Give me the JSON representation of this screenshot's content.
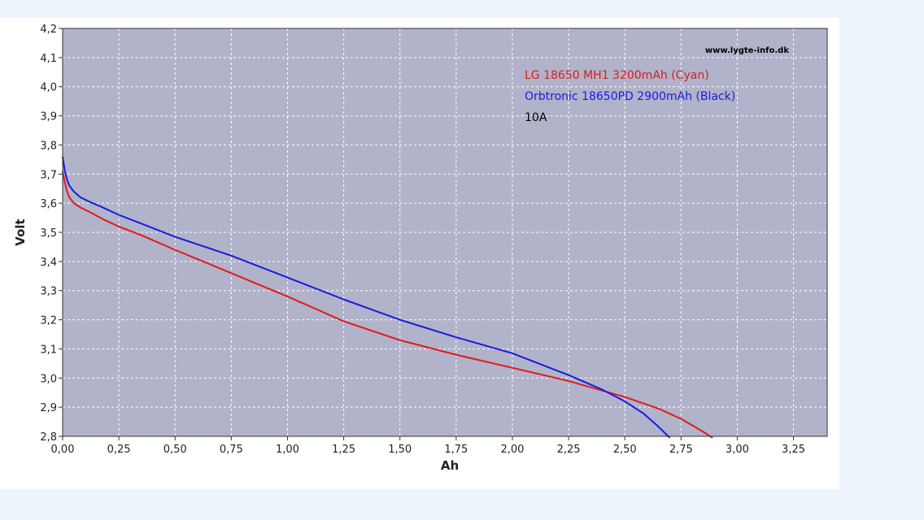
{
  "chart_data": {
    "type": "line",
    "xlabel": "Ah",
    "ylabel": "Volt",
    "xlim": [
      0,
      3.4
    ],
    "ylim": [
      2.8,
      4.2
    ],
    "x_ticks": [
      "0,00",
      "0,25",
      "0,50",
      "0,75",
      "1,00",
      "1,25",
      "1,50",
      "1,75",
      "2,00",
      "2,25",
      "2,50",
      "2,75",
      "3,00",
      "3,25"
    ],
    "y_ticks": [
      "2,8",
      "2,9",
      "3,0",
      "3,1",
      "3,2",
      "3,3",
      "3,4",
      "3,5",
      "3,6",
      "3,7",
      "3,8",
      "3,9",
      "4,0",
      "4,1",
      "4,2"
    ],
    "grid": true,
    "watermark": "www.lygte-info.dk",
    "legend_position": "top-right",
    "annotations": [
      {
        "text": "LG 18650 MH1 3200mAh (Cyan)",
        "color": "#e01a1a"
      },
      {
        "text": "Orbtronic 18650PD 2900mAh (Black)",
        "color": "#1a1ae0"
      },
      {
        "text": "10A",
        "color": "#000000"
      }
    ],
    "series": [
      {
        "color": "#e01a1a",
        "x": [
          0.0,
          0.01,
          0.02,
          0.03,
          0.05,
          0.08,
          0.12,
          0.18,
          0.25,
          0.35,
          0.5,
          0.75,
          1.0,
          1.25,
          1.5,
          1.75,
          2.0,
          2.25,
          2.5,
          2.65,
          2.75,
          2.85,
          2.89
        ],
        "y": [
          3.71,
          3.67,
          3.64,
          3.62,
          3.6,
          3.585,
          3.57,
          3.545,
          3.52,
          3.49,
          3.44,
          3.36,
          3.28,
          3.195,
          3.13,
          3.08,
          3.035,
          2.99,
          2.935,
          2.895,
          2.86,
          2.815,
          2.795
        ]
      },
      {
        "color": "#1a1ae0",
        "x": [
          0.0,
          0.01,
          0.02,
          0.03,
          0.05,
          0.08,
          0.12,
          0.18,
          0.25,
          0.35,
          0.5,
          0.75,
          1.0,
          1.25,
          1.5,
          1.75,
          2.0,
          2.25,
          2.4,
          2.5,
          2.58,
          2.64,
          2.68,
          2.7
        ],
        "y": [
          3.76,
          3.71,
          3.68,
          3.66,
          3.64,
          3.62,
          3.605,
          3.585,
          3.56,
          3.53,
          3.485,
          3.42,
          3.345,
          3.27,
          3.2,
          3.14,
          3.085,
          3.01,
          2.96,
          2.92,
          2.88,
          2.84,
          2.81,
          2.795
        ]
      }
    ]
  }
}
